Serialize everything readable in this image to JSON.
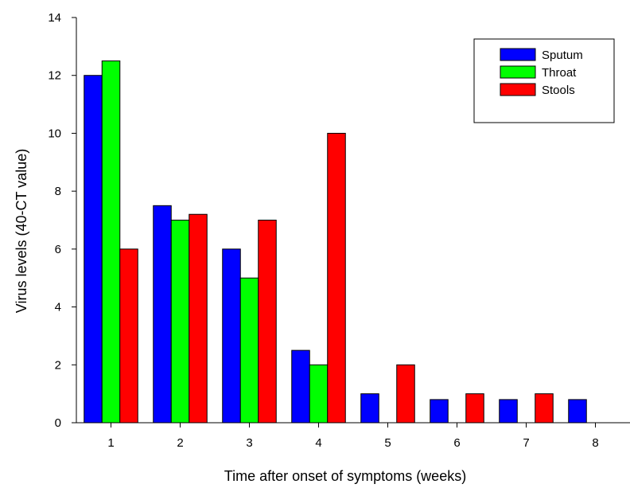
{
  "chart_data": {
    "type": "bar",
    "categories": [
      "1",
      "2",
      "3",
      "4",
      "5",
      "6",
      "7",
      "8"
    ],
    "series": [
      {
        "name": "Sputum",
        "color": "#0000ff",
        "values": [
          12,
          7.5,
          6,
          2.5,
          1,
          0.8,
          0.8,
          0.8
        ]
      },
      {
        "name": "Throat",
        "color": "#00ff00",
        "values": [
          12.5,
          7,
          5,
          2,
          null,
          null,
          null,
          null
        ]
      },
      {
        "name": "Stools",
        "color": "#ff0000",
        "values": [
          6,
          7.2,
          7,
          10,
          2,
          1,
          1,
          null
        ]
      }
    ],
    "xlabel": "Time after onset of symptoms (weeks)",
    "ylabel": "Virus levels (40-CT value)",
    "ylim": [
      0,
      14
    ],
    "yticks": [
      0,
      2,
      4,
      6,
      8,
      10,
      12,
      14
    ],
    "grid": false,
    "legend_position": "top-right"
  }
}
